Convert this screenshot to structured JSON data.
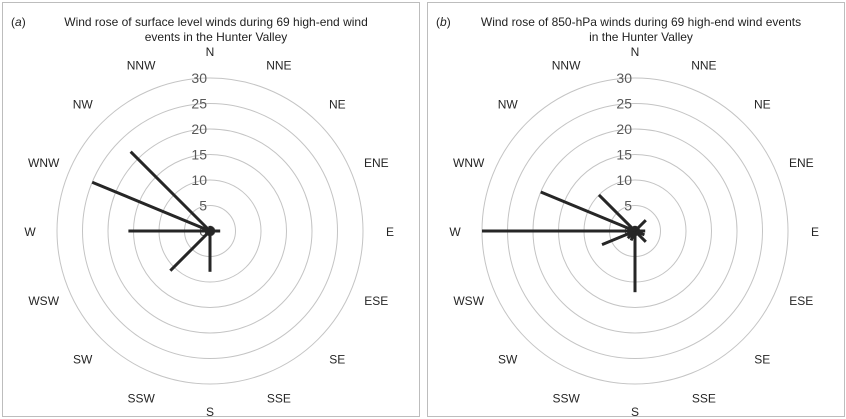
{
  "chart_data": [
    {
      "type": "radar",
      "panel_label": "a",
      "title": "Wind rose of surface level winds during 69 high-end wind events in the Hunter Valley",
      "directions": [
        "N",
        "NNE",
        "NE",
        "ENE",
        "E",
        "ESE",
        "SE",
        "SSE",
        "S",
        "SSW",
        "SW",
        "WSW",
        "W",
        "WNW",
        "NW",
        "NNW"
      ],
      "values": [
        1,
        1,
        1,
        1,
        2,
        1,
        1,
        1,
        8,
        1,
        11,
        1,
        16,
        25,
        22,
        0
      ],
      "r_ticks": [
        0,
        5,
        10,
        15,
        20,
        25,
        30
      ],
      "rlim": [
        0,
        30
      ],
      "grid": true,
      "line_color": "#262626"
    },
    {
      "type": "radar",
      "panel_label": "b",
      "title": "Wind rose of 850-hPa winds during 69 high-end wind events in the Hunter Valley",
      "directions": [
        "N",
        "NNE",
        "NE",
        "ENE",
        "E",
        "ESE",
        "SE",
        "SSE",
        "S",
        "SSW",
        "SW",
        "WSW",
        "W",
        "WNW",
        "NW",
        "NNW"
      ],
      "values": [
        1,
        1,
        3,
        1,
        2,
        2,
        3,
        1,
        12,
        2,
        2,
        7,
        30,
        20,
        10,
        1
      ],
      "r_ticks": [
        0,
        5,
        10,
        15,
        20,
        25,
        30
      ],
      "rlim": [
        0,
        30
      ],
      "grid": true,
      "line_color": "#262626"
    }
  ]
}
